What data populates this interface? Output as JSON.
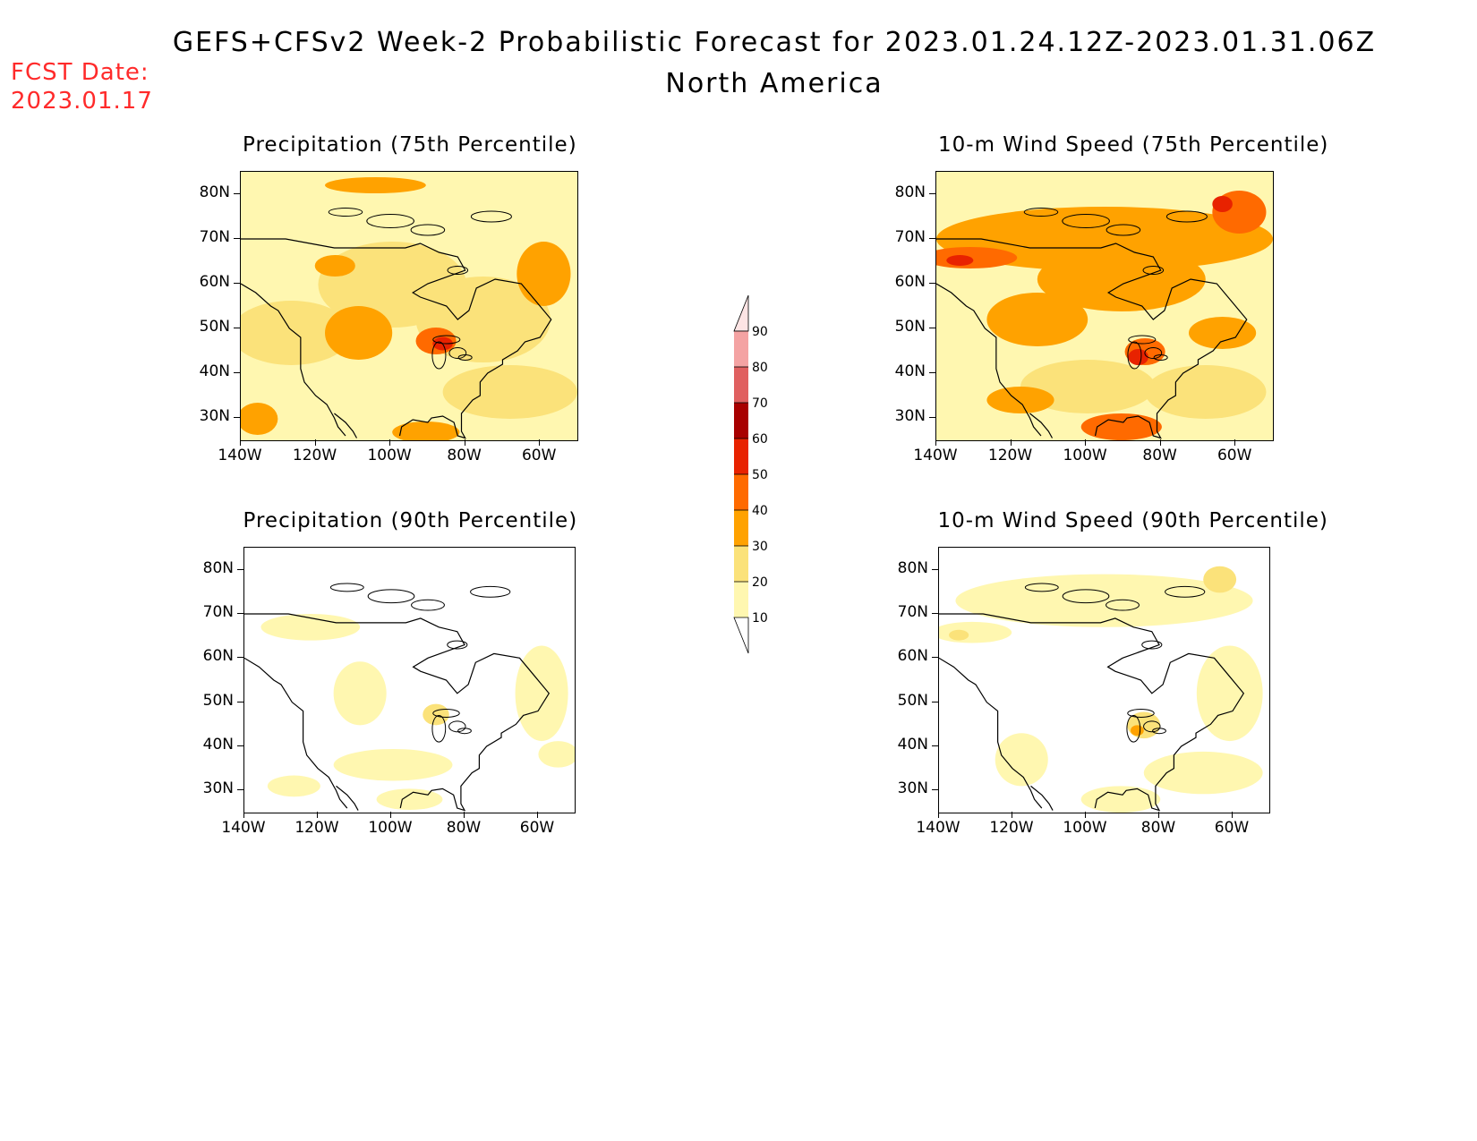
{
  "header": {
    "title": "GEFS+CFSv2 Week-2 Probabilistic Forecast for 2023.01.24.12Z-2023.01.31.06Z",
    "subtitle": "North America",
    "fcst_label": "FCST Date:",
    "fcst_value": "2023.01.17"
  },
  "axes": {
    "lat_labels": [
      "80N",
      "70N",
      "60N",
      "50N",
      "40N",
      "30N"
    ],
    "lon_labels": [
      "140W",
      "120W",
      "100W",
      "80W",
      "60W"
    ]
  },
  "panels": [
    {
      "title": "Precipitation (75th Percentile)",
      "level": "high-precip"
    },
    {
      "title": "10-m Wind Speed (75th Percentile)",
      "level": "high-wind"
    },
    {
      "title": "Precipitation (90th Percentile)",
      "level": "low-precip"
    },
    {
      "title": "10-m Wind Speed (90th Percentile)",
      "level": "low-wind"
    }
  ],
  "colorbar": {
    "labels": [
      "90",
      "80",
      "70",
      "60",
      "50",
      "40",
      "30",
      "20",
      "10"
    ],
    "colors": [
      "#fde4e4",
      "#f4a3a3",
      "#e06060",
      "#a80000",
      "#e82200",
      "#ff6a00",
      "#ffa200",
      "#fbe27a",
      "#fff7b0"
    ]
  },
  "colors": {
    "fcst_red": "#ff2a2a",
    "c10": "#fff7b0",
    "c20": "#fbe27a",
    "c30": "#ffa200",
    "c40": "#ff6a00",
    "c50": "#e82200",
    "c60": "#a80000"
  }
}
